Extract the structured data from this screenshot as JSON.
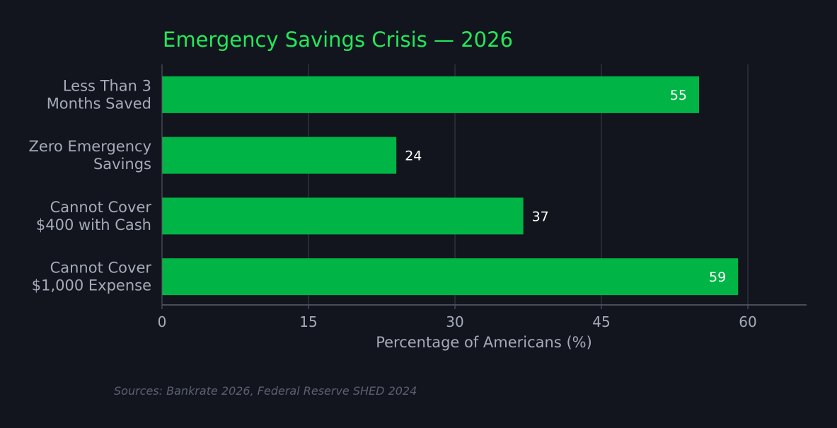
{
  "colors": {
    "background": "#12151e",
    "bar": "#00b545",
    "title": "#22e85a",
    "grid": "#3a3e48",
    "axis": "#5a5f6a",
    "text": "#a5abb8",
    "value_label": "#ffffff",
    "source": "#5b6170"
  },
  "chart_data": {
    "type": "bar",
    "orientation": "horizontal",
    "title": "Emergency Savings Crisis — 2026",
    "xlabel": "Percentage of Americans (%)",
    "ylabel": "",
    "categories": [
      [
        "Less Than 3",
        "Months Saved"
      ],
      [
        "Zero Emergency",
        "Savings"
      ],
      [
        "Cannot Cover",
        "$400 with Cash"
      ],
      [
        "Cannot Cover",
        "$1,000 Expense"
      ]
    ],
    "values": [
      55,
      24,
      37,
      59
    ],
    "xlim": [
      0,
      66
    ],
    "xticks": [
      0,
      15,
      30,
      45,
      60
    ],
    "grid": "vertical",
    "legend": "none",
    "source": "Sources: Bankrate 2026, Federal Reserve SHED 2024"
  }
}
